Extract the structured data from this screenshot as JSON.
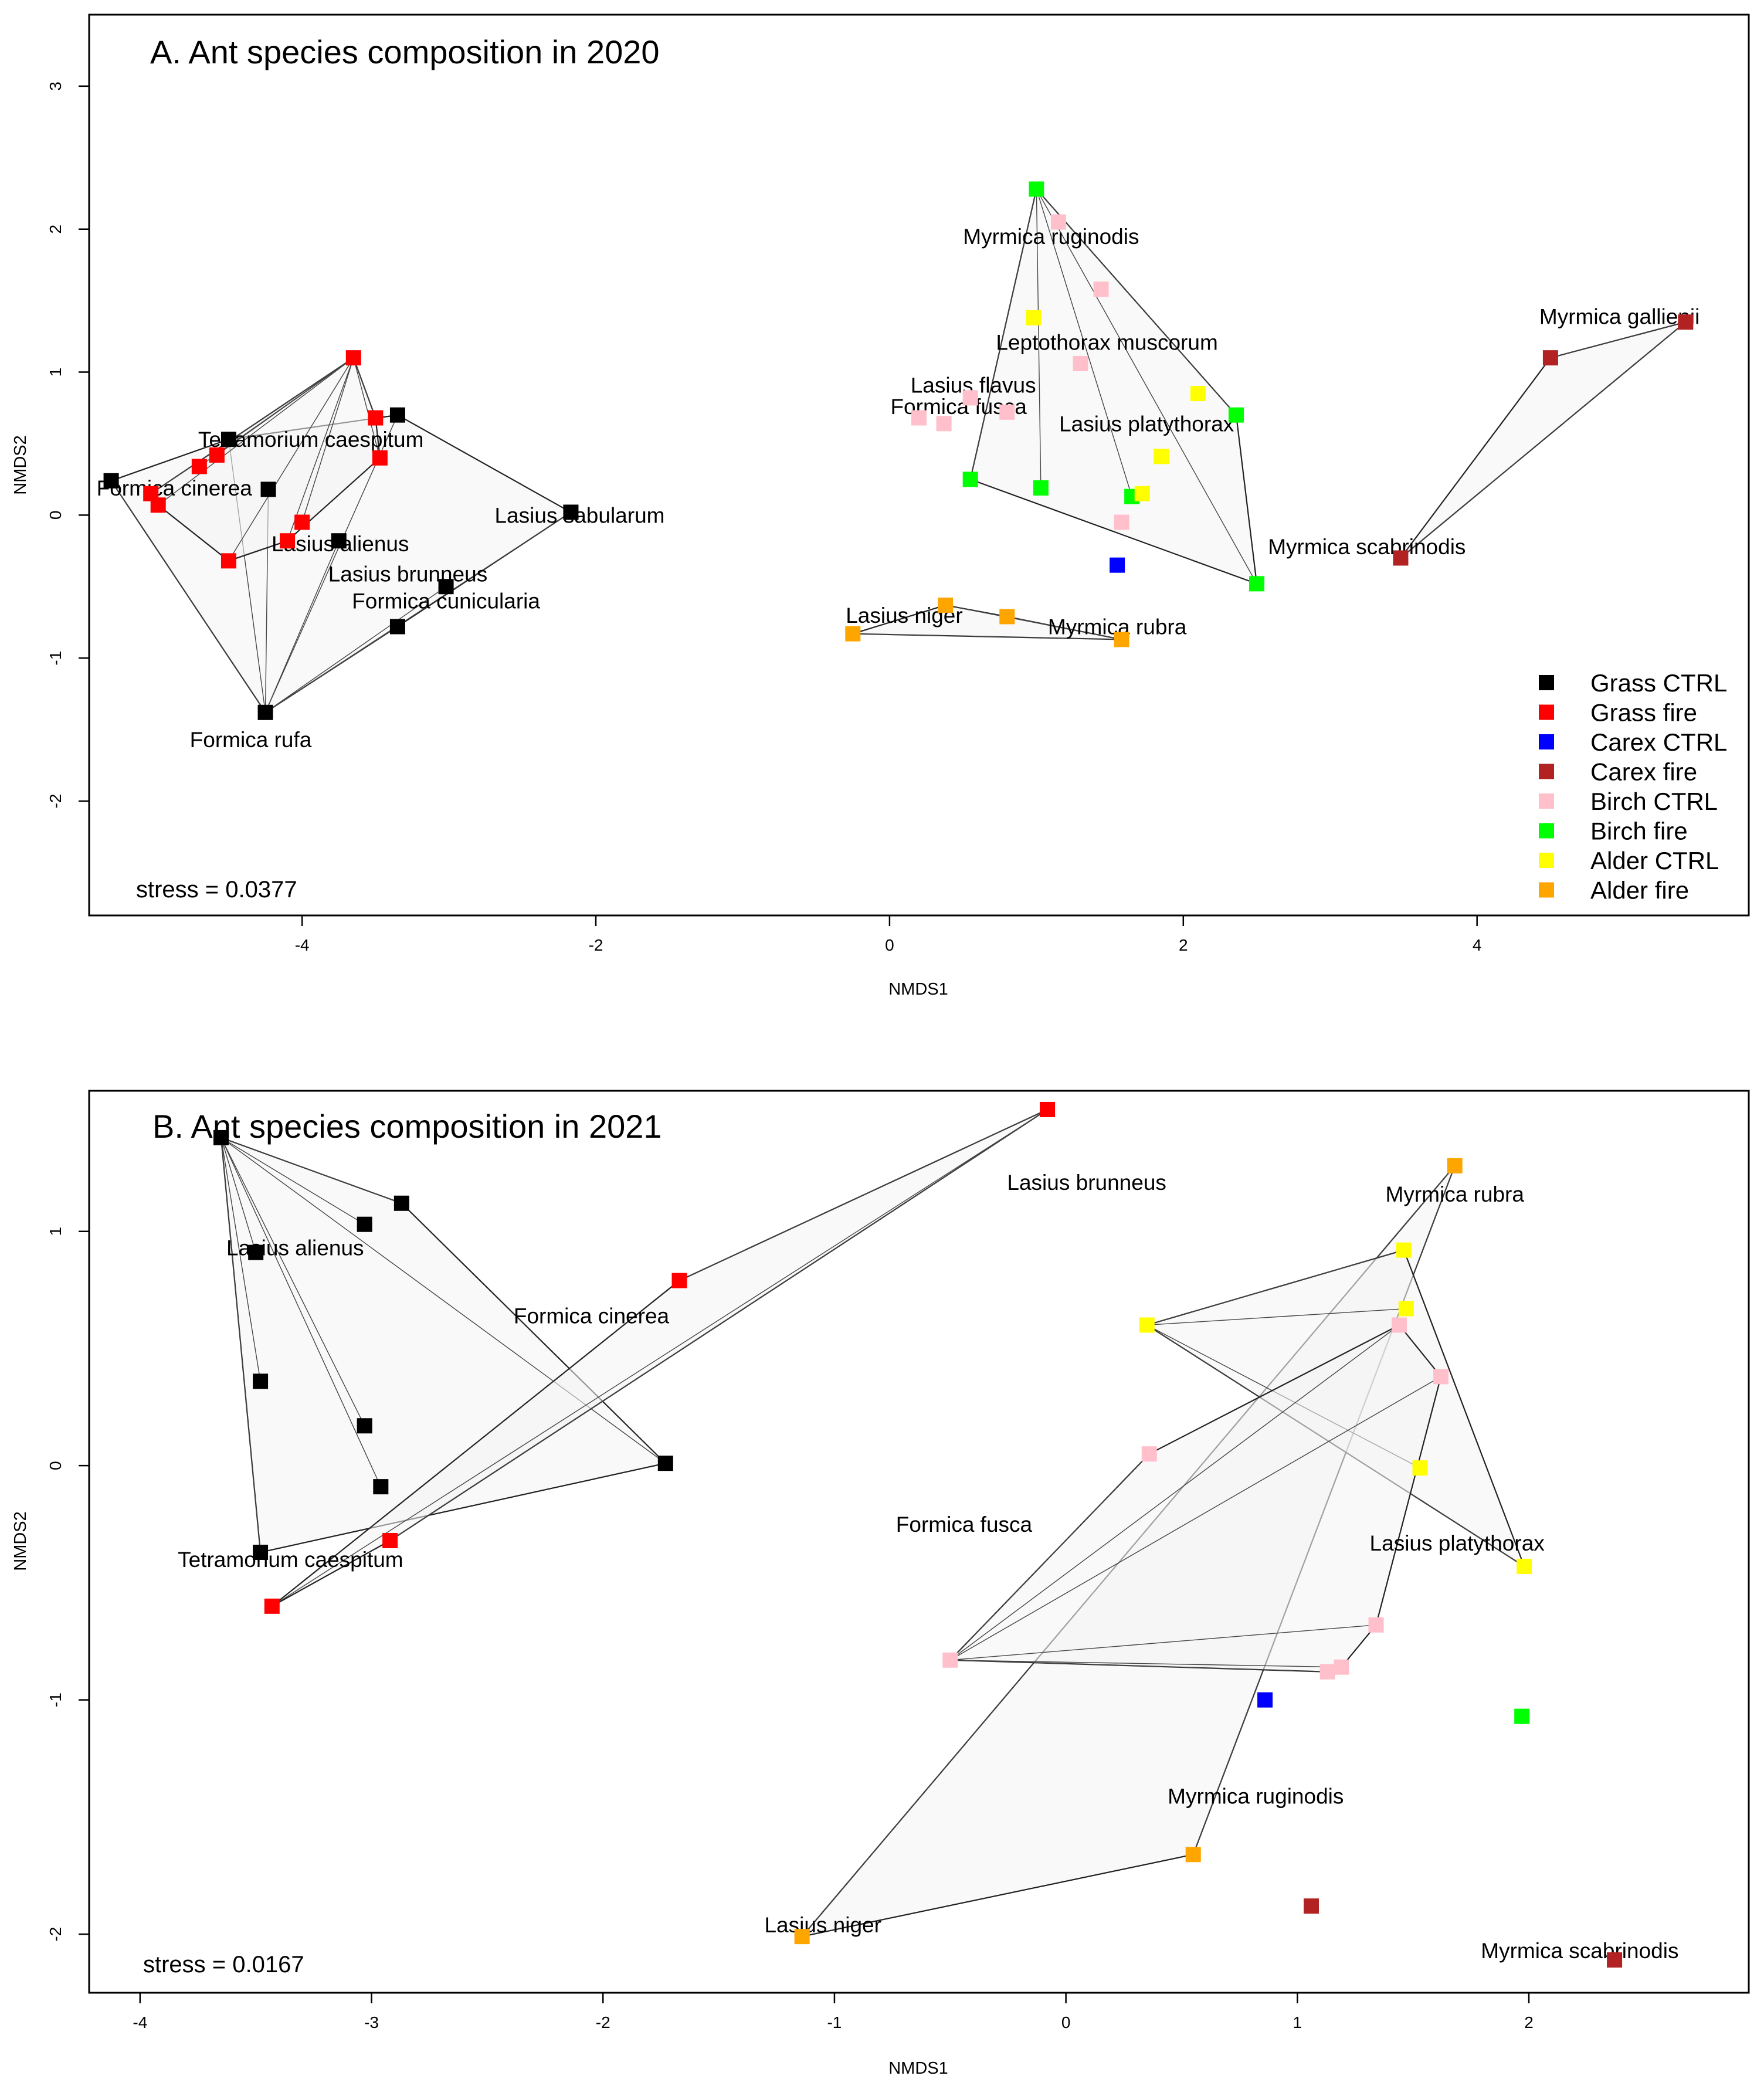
{
  "chart_data": [
    {
      "type": "scatter",
      "title": "A. Ant species composition in 2020",
      "xlabel": "NMDS1",
      "ylabel": "NMDS2",
      "xlim": [
        -5.45,
        5.85
      ],
      "ylim": [
        -2.8,
        3.5
      ],
      "xticks": [
        -4,
        -2,
        0,
        2,
        4
      ],
      "yticks": [
        -2,
        -1,
        0,
        1,
        2,
        3
      ],
      "stress": "stress = 0.0377",
      "legend": {
        "position": "bottom-right",
        "entries": [
          {
            "label": "Grass CTRL",
            "color": "#000000"
          },
          {
            "label": "Grass fire",
            "color": "#ff0000"
          },
          {
            "label": "Carex CTRL",
            "color": "#0000ff"
          },
          {
            "label": "Carex fire",
            "color": "#b22222"
          },
          {
            "label": "Birch CTRL",
            "color": "#ffc0cb"
          },
          {
            "label": "Birch fire",
            "color": "#00ff00"
          },
          {
            "label": "Alder CTRL",
            "color": "#ffff00"
          },
          {
            "label": "Alder fire",
            "color": "#ffa500"
          }
        ]
      },
      "hulls": [
        {
          "group": "Grass CTRL",
          "apex": [
            -4.25,
            -1.38
          ]
        },
        {
          "group": "Grass fire",
          "apex": [
            -3.65,
            1.1
          ]
        },
        {
          "group": "Birch fire",
          "apex": [
            1.0,
            2.28
          ]
        },
        {
          "group": "Alder fire",
          "apex": [
            1.58,
            -0.87
          ]
        },
        {
          "group": "Carex fire",
          "apex": [
            5.42,
            1.35
          ]
        }
      ],
      "series": [
        {
          "name": "Grass CTRL",
          "color": "#000000",
          "points": [
            [
              -5.3,
              0.24
            ],
            [
              -4.5,
              0.53
            ],
            [
              -4.23,
              0.18
            ],
            [
              -3.35,
              0.7
            ],
            [
              -3.75,
              -0.18
            ],
            [
              -2.17,
              0.02
            ],
            [
              -3.02,
              -0.5
            ],
            [
              -3.35,
              -0.78
            ],
            [
              -4.25,
              -1.38
            ]
          ]
        },
        {
          "name": "Grass fire",
          "color": "#ff0000",
          "points": [
            [
              -3.65,
              1.1
            ],
            [
              -3.5,
              0.68
            ],
            [
              -4.58,
              0.42
            ],
            [
              -4.7,
              0.34
            ],
            [
              -5.03,
              0.15
            ],
            [
              -4.98,
              0.07
            ],
            [
              -3.47,
              0.4
            ],
            [
              -4.0,
              -0.05
            ],
            [
              -4.1,
              -0.18
            ],
            [
              -4.5,
              -0.32
            ]
          ]
        },
        {
          "name": "Carex CTRL",
          "color": "#0000ff",
          "points": [
            [
              1.55,
              -0.35
            ]
          ]
        },
        {
          "name": "Carex fire",
          "color": "#b22222",
          "points": [
            [
              5.42,
              1.35
            ],
            [
              4.5,
              1.1
            ],
            [
              3.48,
              -0.3
            ]
          ]
        },
        {
          "name": "Birch CTRL",
          "color": "#ffc0cb",
          "points": [
            [
              1.15,
              2.05
            ],
            [
              1.44,
              1.58
            ],
            [
              1.3,
              1.06
            ],
            [
              0.55,
              0.82
            ],
            [
              0.8,
              0.72
            ],
            [
              0.2,
              0.68
            ],
            [
              0.37,
              0.64
            ],
            [
              1.58,
              -0.05
            ]
          ]
        },
        {
          "name": "Birch fire",
          "color": "#00ff00",
          "points": [
            [
              1.0,
              2.28
            ],
            [
              2.36,
              0.7
            ],
            [
              0.55,
              0.25
            ],
            [
              1.03,
              0.19
            ],
            [
              1.65,
              0.13
            ],
            [
              2.5,
              -0.48
            ]
          ]
        },
        {
          "name": "Alder CTRL",
          "color": "#ffff00",
          "points": [
            [
              0.98,
              1.38
            ],
            [
              2.1,
              0.85
            ],
            [
              1.85,
              0.41
            ],
            [
              1.72,
              0.15
            ]
          ]
        },
        {
          "name": "Alder fire",
          "color": "#ffa500",
          "points": [
            [
              0.38,
              -0.63
            ],
            [
              0.8,
              -0.71
            ],
            [
              -0.25,
              -0.83
            ],
            [
              1.58,
              -0.87
            ]
          ]
        }
      ],
      "species": [
        {
          "name": "Tetramorium caespitum",
          "x": -3.94,
          "y": 0.53
        },
        {
          "name": "Formica cinerea",
          "x": -4.87,
          "y": 0.19
        },
        {
          "name": "Lasius sabularum",
          "x": -2.11,
          "y": 0.0
        },
        {
          "name": "Lasius alienus",
          "x": -3.74,
          "y": -0.2
        },
        {
          "name": "Lasius brunneus",
          "x": -3.28,
          "y": -0.41
        },
        {
          "name": "Formica cunicularia",
          "x": -3.02,
          "y": -0.6
        },
        {
          "name": "Formica rufa",
          "x": -4.35,
          "y": -1.57
        },
        {
          "name": "Myrmica ruginodis",
          "x": 1.1,
          "y": 1.95
        },
        {
          "name": "Leptothorax muscorum",
          "x": 1.48,
          "y": 1.21
        },
        {
          "name": "Lasius flavus",
          "x": 0.57,
          "y": 0.91
        },
        {
          "name": "Formica fusca",
          "x": 0.47,
          "y": 0.76
        },
        {
          "name": "Lasius platythorax",
          "x": 1.75,
          "y": 0.64
        },
        {
          "name": "Myrmica scabrinodis",
          "x": 3.25,
          "y": -0.22
        },
        {
          "name": "Lasius niger",
          "x": 0.1,
          "y": -0.7
        },
        {
          "name": "Myrmica rubra",
          "x": 1.55,
          "y": -0.78
        },
        {
          "name": "Myrmica gallienii",
          "x": 4.97,
          "y": 1.39
        }
      ]
    },
    {
      "type": "scatter",
      "title": "B. Ant species composition in 2021",
      "xlabel": "NMDS1",
      "ylabel": "NMDS2",
      "xlim": [
        -4.22,
        2.95
      ],
      "ylim": [
        -2.25,
        1.6
      ],
      "xticks": [
        -4,
        -3,
        -2,
        -1,
        0,
        1,
        2
      ],
      "yticks": [
        -2,
        -1,
        0,
        1
      ],
      "stress": "stress = 0.0167",
      "hulls": [
        {
          "group": "Grass CTRL",
          "apex": [
            -3.65,
            1.4
          ]
        },
        {
          "group": "Grass fire",
          "apex": [
            -0.08,
            1.52
          ]
        },
        {
          "group": "Alder fire",
          "apex": [
            1.68,
            1.28
          ]
        },
        {
          "group": "Alder CTRL",
          "apex": [
            0.35,
            0.6
          ]
        },
        {
          "group": "Birch CTRL",
          "apex": [
            -0.5,
            -0.83
          ]
        },
        {
          "group": "Birch fire",
          "apex": [
            1.97,
            -1.07
          ]
        }
      ],
      "series": [
        {
          "name": "Grass CTRL",
          "color": "#000000",
          "points": [
            [
              -3.65,
              1.4
            ],
            [
              -2.87,
              1.12
            ],
            [
              -3.03,
              1.03
            ],
            [
              -3.5,
              0.91
            ],
            [
              -3.48,
              0.36
            ],
            [
              -3.03,
              0.17
            ],
            [
              -2.96,
              -0.09
            ],
            [
              -1.73,
              0.01
            ],
            [
              -3.48,
              -0.37
            ]
          ]
        },
        {
          "name": "Grass fire",
          "color": "#ff0000",
          "points": [
            [
              -0.08,
              1.52
            ],
            [
              -1.67,
              0.79
            ],
            [
              -2.92,
              -0.32
            ],
            [
              -3.43,
              -0.6
            ]
          ]
        },
        {
          "name": "Carex CTRL",
          "color": "#0000ff",
          "points": [
            [
              0.86,
              -1.0
            ]
          ]
        },
        {
          "name": "Carex fire",
          "color": "#b22222",
          "points": [
            [
              1.06,
              -1.88
            ],
            [
              2.37,
              -2.11
            ]
          ]
        },
        {
          "name": "Birch CTRL",
          "color": "#ffc0cb",
          "points": [
            [
              1.44,
              0.6
            ],
            [
              1.62,
              0.38
            ],
            [
              0.36,
              0.05
            ],
            [
              1.34,
              -0.68
            ],
            [
              1.19,
              -0.86
            ],
            [
              1.13,
              -0.88
            ],
            [
              -0.5,
              -0.83
            ]
          ]
        },
        {
          "name": "Birch fire",
          "color": "#00ff00",
          "points": [
            [
              1.97,
              -1.07
            ]
          ]
        },
        {
          "name": "Alder CTRL",
          "color": "#ffff00",
          "points": [
            [
              1.46,
              0.92
            ],
            [
              1.47,
              0.67
            ],
            [
              0.35,
              0.6
            ],
            [
              1.53,
              -0.01
            ],
            [
              1.98,
              -0.43
            ]
          ]
        },
        {
          "name": "Alder fire",
          "color": "#ffa500",
          "points": [
            [
              1.68,
              1.28
            ],
            [
              0.55,
              -1.66
            ],
            [
              -1.14,
              -2.01
            ]
          ]
        }
      ],
      "species": [
        {
          "name": "Lasius brunneus",
          "x": 0.09,
          "y": 1.21
        },
        {
          "name": "Myrmica rubra",
          "x": 1.68,
          "y": 1.16
        },
        {
          "name": "Lasius alienus",
          "x": -3.33,
          "y": 0.93
        },
        {
          "name": "Formica cinerea",
          "x": -2.05,
          "y": 0.64
        },
        {
          "name": "Formica fusca",
          "x": -0.44,
          "y": -0.25
        },
        {
          "name": "Lasius platythorax",
          "x": 1.69,
          "y": -0.33
        },
        {
          "name": "Tetramorium caespitum",
          "x": -3.35,
          "y": -0.4
        },
        {
          "name": "Myrmica ruginodis",
          "x": 0.82,
          "y": -1.41
        },
        {
          "name": "Lasius niger",
          "x": -1.05,
          "y": -1.96
        },
        {
          "name": "Myrmica scabrinodis",
          "x": 2.22,
          "y": -2.07
        }
      ]
    }
  ]
}
